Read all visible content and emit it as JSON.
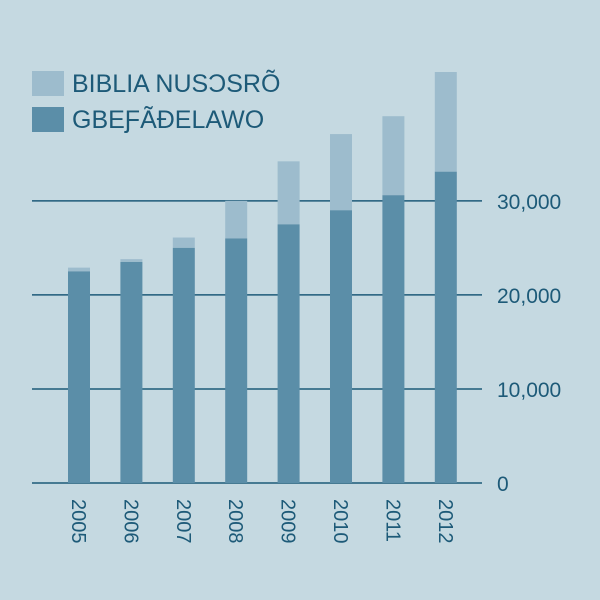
{
  "colors": {
    "background": "#c5d9e1",
    "top_segment": "#9dbccd",
    "base_segment": "#5b8ea8",
    "gridline": "#1d5a78",
    "text": "#1d5a78"
  },
  "chart_data": {
    "type": "bar",
    "stacked": true,
    "categories": [
      "2005",
      "2006",
      "2007",
      "2008",
      "2009",
      "2010",
      "2011",
      "2012"
    ],
    "series": [
      {
        "name": "GBEƑÃĐELAWO",
        "values": [
          22500,
          23500,
          25000,
          26000,
          27500,
          29000,
          30600,
          33100
        ]
      },
      {
        "name": "BIBLIA NUSƆSRÕ",
        "values": [
          400,
          300,
          1100,
          4000,
          6700,
          8100,
          8400,
          10600
        ]
      }
    ],
    "legend": [
      "BIBLIA NUSƆSRÕ",
      "GBEƑÃĐELAWO"
    ],
    "legend_position": "top-left",
    "yticks": [
      "0",
      "10,000",
      "20,000",
      "30,000"
    ],
    "ytick_values": [
      0,
      10000,
      20000,
      30000
    ],
    "ylim": [
      0,
      43700
    ],
    "y_axis_side": "right",
    "grid": true,
    "title": "",
    "xlabel": "",
    "ylabel": ""
  }
}
